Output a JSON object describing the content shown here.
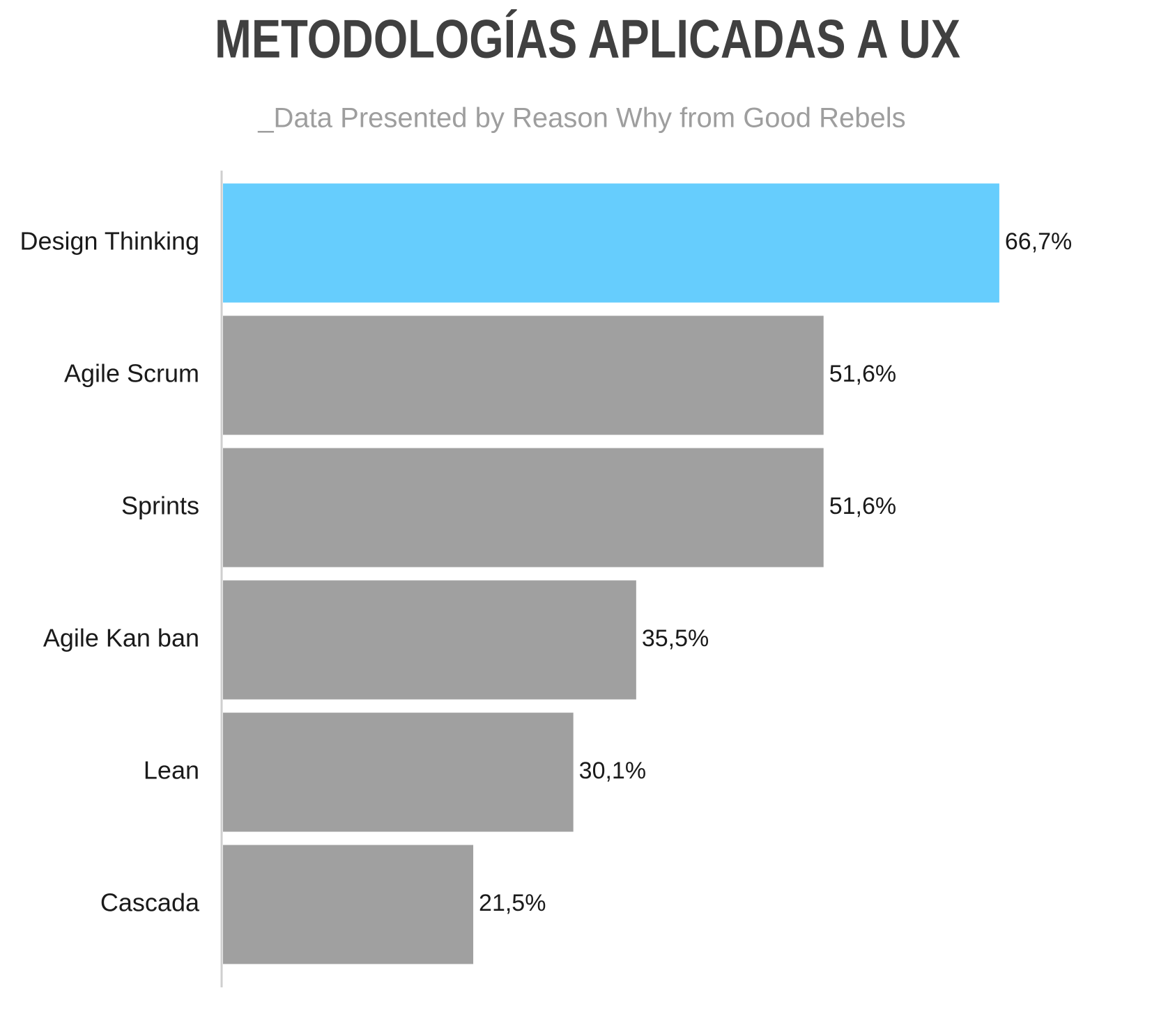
{
  "chart_data": {
    "type": "bar",
    "orientation": "horizontal",
    "title": "METODOLOGÍAS APLICADAS A UX",
    "subtitle": "_Data Presented by Reason Why from Good Rebels",
    "categories": [
      "Design Thinking",
      "Agile Scrum",
      "Sprints",
      "Agile Kan ban",
      "Lean",
      "Cascada"
    ],
    "values": [
      66.7,
      51.6,
      51.6,
      35.5,
      30.1,
      21.5
    ],
    "value_labels": [
      "66,7%",
      "51,6%",
      "51,6%",
      "35,5%",
      "30,1%",
      "21,5%"
    ],
    "colors": [
      "#66cdfd",
      "#a0a0a0",
      "#a0a0a0",
      "#a0a0a0",
      "#a0a0a0",
      "#a0a0a0"
    ]
  }
}
